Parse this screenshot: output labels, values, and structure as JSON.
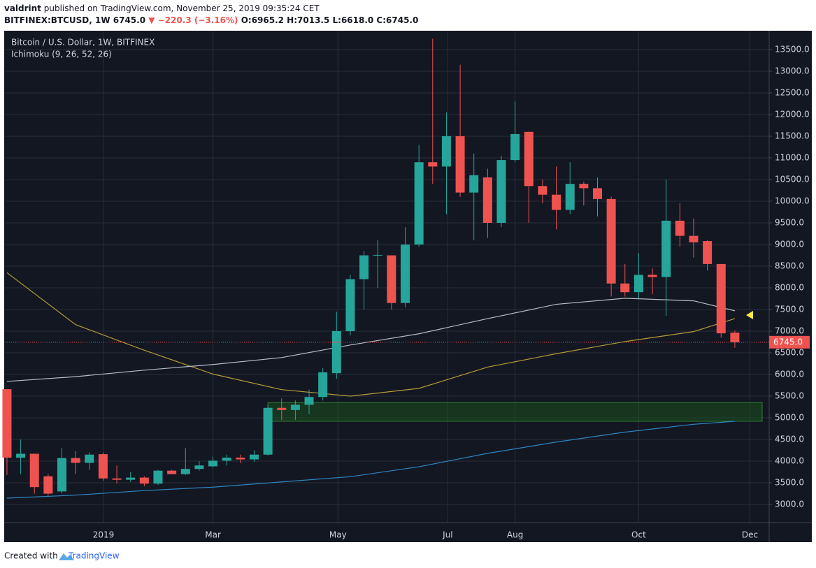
{
  "header": {
    "author": "valdrint",
    "published": "published on TradingView.com, November 25, 2019 09:35:24 CET",
    "symbol": "BITFINEX:BTCUSD, 1W",
    "price": "6745.0",
    "change": "▼ −220.3 (−3.16%)",
    "ohlc": "O:6965.2 H:7013.5 L:6618.0 C:6745.0"
  },
  "footer": {
    "created": "Created with",
    "brand": "TradingView"
  },
  "chart_data": {
    "type": "candlestick",
    "title": "Bitcoin / U.S. Dollar, 1W, BITFINEX",
    "subtitle": "Ichimoku (9, 26, 52, 26)",
    "up_color": "#26a69a",
    "down_color": "#ef5350",
    "candles": [
      {
        "open": 5660,
        "high": 5660,
        "low": 3680,
        "close": 4080
      },
      {
        "open": 4080,
        "high": 4500,
        "low": 3700,
        "close": 4170
      },
      {
        "open": 4170,
        "high": 4170,
        "low": 3250,
        "close": 3400
      },
      {
        "open": 3650,
        "high": 3700,
        "low": 3200,
        "close": 3250
      },
      {
        "open": 3300,
        "high": 4300,
        "low": 3250,
        "close": 4070
      },
      {
        "open": 4070,
        "high": 4230,
        "low": 3700,
        "close": 3960
      },
      {
        "open": 3960,
        "high": 4200,
        "low": 3800,
        "close": 4150
      },
      {
        "open": 4160,
        "high": 4200,
        "low": 3550,
        "close": 3600
      },
      {
        "open": 3600,
        "high": 3900,
        "low": 3480,
        "close": 3570
      },
      {
        "open": 3570,
        "high": 3750,
        "low": 3520,
        "close": 3620
      },
      {
        "open": 3620,
        "high": 3650,
        "low": 3420,
        "close": 3480
      },
      {
        "open": 3480,
        "high": 3800,
        "low": 3450,
        "close": 3780
      },
      {
        "open": 3780,
        "high": 3800,
        "low": 3700,
        "close": 3700
      },
      {
        "open": 3700,
        "high": 4300,
        "low": 3680,
        "close": 3820
      },
      {
        "open": 3820,
        "high": 4000,
        "low": 3780,
        "close": 3900
      },
      {
        "open": 3880,
        "high": 4100,
        "low": 3850,
        "close": 4010
      },
      {
        "open": 4010,
        "high": 4150,
        "low": 3900,
        "close": 4080
      },
      {
        "open": 4080,
        "high": 4150,
        "low": 3950,
        "close": 4040
      },
      {
        "open": 4040,
        "high": 4250,
        "low": 3980,
        "close": 4150
      },
      {
        "open": 4150,
        "high": 5300,
        "low": 4130,
        "close": 5230
      },
      {
        "open": 5230,
        "high": 5450,
        "low": 4950,
        "close": 5180
      },
      {
        "open": 5180,
        "high": 5400,
        "low": 4950,
        "close": 5300
      },
      {
        "open": 5300,
        "high": 5650,
        "low": 5080,
        "close": 5480
      },
      {
        "open": 5480,
        "high": 6150,
        "low": 5400,
        "close": 6050
      },
      {
        "open": 6030,
        "high": 7450,
        "low": 5900,
        "close": 7000
      },
      {
        "open": 7000,
        "high": 8300,
        "low": 6900,
        "close": 8200
      },
      {
        "open": 8200,
        "high": 8850,
        "low": 7500,
        "close": 8750
      },
      {
        "open": 8750,
        "high": 9100,
        "low": 8000,
        "close": 8760
      },
      {
        "open": 8750,
        "high": 8750,
        "low": 7500,
        "close": 7650
      },
      {
        "open": 7650,
        "high": 9400,
        "low": 7550,
        "close": 9000
      },
      {
        "open": 9000,
        "high": 11300,
        "low": 8950,
        "close": 10900
      },
      {
        "open": 10900,
        "high": 13750,
        "low": 10400,
        "close": 10800
      },
      {
        "open": 10800,
        "high": 12050,
        "low": 9700,
        "close": 11500
      },
      {
        "open": 11500,
        "high": 13150,
        "low": 10100,
        "close": 10200
      },
      {
        "open": 10200,
        "high": 11100,
        "low": 9100,
        "close": 10600
      },
      {
        "open": 10550,
        "high": 10750,
        "low": 9150,
        "close": 9500
      },
      {
        "open": 9500,
        "high": 11050,
        "low": 9400,
        "close": 10950
      },
      {
        "open": 10950,
        "high": 12300,
        "low": 10900,
        "close": 11550
      },
      {
        "open": 11600,
        "high": 11600,
        "low": 9500,
        "close": 10350
      },
      {
        "open": 10350,
        "high": 10500,
        "low": 9950,
        "close": 10150
      },
      {
        "open": 10150,
        "high": 10800,
        "low": 9350,
        "close": 9800
      },
      {
        "open": 9800,
        "high": 10900,
        "low": 9700,
        "close": 10400
      },
      {
        "open": 10400,
        "high": 10450,
        "low": 9900,
        "close": 10300
      },
      {
        "open": 10300,
        "high": 10550,
        "low": 9650,
        "close": 10050
      },
      {
        "open": 10050,
        "high": 10100,
        "low": 7800,
        "close": 8100
      },
      {
        "open": 8100,
        "high": 8550,
        "low": 7800,
        "close": 7900
      },
      {
        "open": 7900,
        "high": 8800,
        "low": 7750,
        "close": 8300
      },
      {
        "open": 8300,
        "high": 8450,
        "low": 7850,
        "close": 8250
      },
      {
        "open": 8250,
        "high": 10500,
        "low": 7350,
        "close": 9550
      },
      {
        "open": 9550,
        "high": 9950,
        "low": 8950,
        "close": 9200
      },
      {
        "open": 9200,
        "high": 9600,
        "low": 8700,
        "close": 9050
      },
      {
        "open": 9080,
        "high": 9100,
        "low": 8400,
        "close": 8550
      },
      {
        "open": 8550,
        "high": 8550,
        "low": 6850,
        "close": 6950
      },
      {
        "open": 6965.2,
        "high": 7013.5,
        "low": 6618,
        "close": 6745
      }
    ],
    "series": [
      {
        "color": "#b59a3a",
        "x": [
          0,
          5,
          10,
          15,
          20,
          25,
          30,
          35,
          40,
          45,
          50,
          53
        ],
        "values": [
          8350,
          7150,
          6560,
          6010,
          5650,
          5500,
          5680,
          6170,
          6480,
          6760,
          6990,
          7290
        ]
      },
      {
        "color": "#b8bcc6",
        "x": [
          0,
          5,
          10,
          15,
          20,
          25,
          30,
          35,
          40,
          45,
          50,
          53
        ],
        "values": [
          5840,
          5950,
          6100,
          6230,
          6390,
          6680,
          6940,
          7290,
          7620,
          7760,
          7700,
          7470
        ]
      },
      {
        "color": "#2e86c1",
        "x": [
          0,
          5,
          10,
          15,
          20,
          25,
          30,
          35,
          40,
          45,
          50,
          53
        ],
        "values": [
          3145,
          3215,
          3320,
          3400,
          3520,
          3640,
          3870,
          4180,
          4440,
          4670,
          4850,
          4920
        ]
      }
    ],
    "zone": {
      "from": 4920,
      "to": 5350,
      "x_start": 19,
      "color": "#1b5e20"
    },
    "last_price": 6745,
    "last_price_label": "6745.0",
    "xlim": [
      -0.15,
      55.5
    ],
    "xticks": [
      {
        "value": 7.03,
        "label": "2019"
      },
      {
        "value": 15.0,
        "label": "Mar"
      },
      {
        "value": 24.1,
        "label": "May"
      },
      {
        "value": 32.1,
        "label": "Jul"
      },
      {
        "value": 37.0,
        "label": "Aug"
      },
      {
        "value": 46.0,
        "label": "Oct"
      },
      {
        "value": 54.1,
        "label": "Dec"
      }
    ],
    "ylim": [
      2581,
      13919
    ],
    "yticks": [
      {
        "value": 3000,
        "label": "3000.0"
      },
      {
        "value": 3500,
        "label": "3500.0"
      },
      {
        "value": 4000,
        "label": "4000.0"
      },
      {
        "value": 4500,
        "label": "4500.0"
      },
      {
        "value": 5000,
        "label": "5000.0"
      },
      {
        "value": 5500,
        "label": "5500.0"
      },
      {
        "value": 6000,
        "label": "6000.0"
      },
      {
        "value": 6500,
        "label": "6500.0"
      },
      {
        "value": 7000,
        "label": "7000.0"
      },
      {
        "value": 7500,
        "label": "7500.0"
      },
      {
        "value": 8000,
        "label": "8000.0"
      },
      {
        "value": 8500,
        "label": "8500.0"
      },
      {
        "value": 9000,
        "label": "9000.0"
      },
      {
        "value": 9500,
        "label": "9500.0"
      },
      {
        "value": 10000,
        "label": "10000.0"
      },
      {
        "value": 10500,
        "label": "10500.0"
      },
      {
        "value": 11000,
        "label": "11000.0"
      },
      {
        "value": 11500,
        "label": "11500.0"
      },
      {
        "value": 12000,
        "label": "12000.0"
      },
      {
        "value": 12500,
        "label": "12500.0"
      },
      {
        "value": 13000,
        "label": "13000.0"
      },
      {
        "value": 13500,
        "label": "13500.0"
      }
    ],
    "grid": true
  }
}
